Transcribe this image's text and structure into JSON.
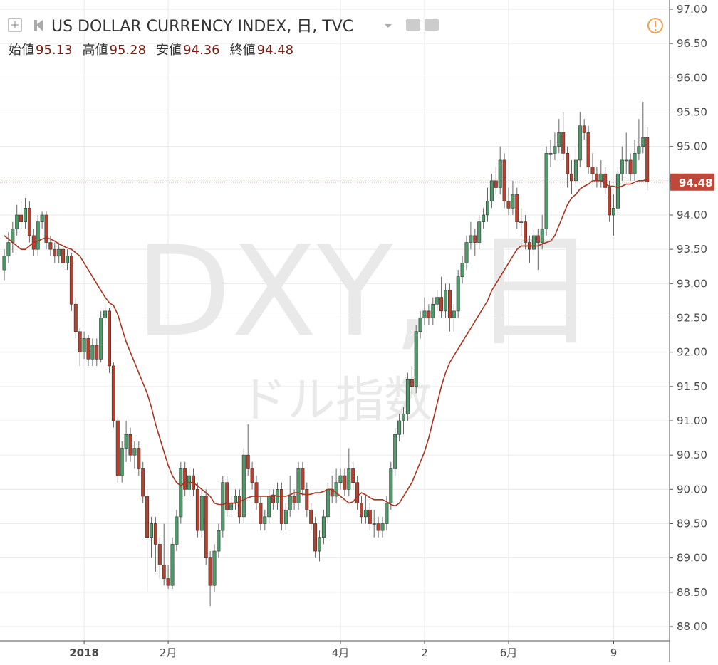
{
  "chart_data": {
    "type": "candlestick",
    "symbol": "US DOLLAR CURRENCY INDEX, 日, TVC",
    "ohlc_labels": [
      "始値",
      "高値",
      "安値",
      "終値"
    ],
    "watermark": "DXY, 日",
    "watermark_sub": "ドル指数",
    "up_color": "#4f9a69",
    "down_color": "#b5412e",
    "ma_color": "#a8341f",
    "ylim": [
      87.8,
      97.13
    ],
    "yticks": [
      {
        "value": 88,
        "label": "88.00"
      },
      {
        "value": 88.5,
        "label": "88.50"
      },
      {
        "value": 89,
        "label": "89.00"
      },
      {
        "value": 89.5,
        "label": "89.50"
      },
      {
        "value": 90,
        "label": "90.00"
      },
      {
        "value": 90.5,
        "label": "90.50"
      },
      {
        "value": 91,
        "label": "91.00"
      },
      {
        "value": 91.5,
        "label": "91.50"
      },
      {
        "value": 92,
        "label": "92.00"
      },
      {
        "value": 92.5,
        "label": "92.50"
      },
      {
        "value": 93,
        "label": "93.00"
      },
      {
        "value": 93.5,
        "label": "93.50"
      },
      {
        "value": 94,
        "label": "94.00"
      },
      {
        "value": 94.5,
        "label": "94.50"
      },
      {
        "value": 95,
        "label": "95.00"
      },
      {
        "value": 95.5,
        "label": "95.50"
      },
      {
        "value": 96,
        "label": "96.00"
      },
      {
        "value": 96.5,
        "label": "96.50"
      },
      {
        "value": 97,
        "label": "97.00"
      }
    ],
    "xticks": [
      {
        "value": 19,
        "label": "2018"
      },
      {
        "value": 39,
        "label": "2月"
      },
      {
        "value": 80,
        "label": "4月"
      },
      {
        "value": 100,
        "label": "2"
      },
      {
        "value": 120,
        "label": "6月"
      },
      {
        "value": 145,
        "label": "9"
      }
    ],
    "grid": true,
    "ohlc": [
      [
        93.2,
        93.5,
        93.05,
        93.4
      ],
      [
        93.4,
        93.75,
        93.3,
        93.6
      ],
      [
        93.6,
        93.9,
        93.45,
        93.8
      ],
      [
        93.8,
        94.15,
        93.7,
        94.0
      ],
      [
        94.0,
        94.2,
        93.8,
        93.9
      ],
      [
        93.9,
        94.25,
        93.8,
        94.1
      ],
      [
        94.1,
        94.2,
        93.6,
        93.7
      ],
      [
        93.7,
        93.8,
        93.4,
        93.5
      ],
      [
        93.5,
        94.0,
        93.4,
        93.9
      ],
      [
        93.9,
        94.05,
        93.8,
        94.0
      ],
      [
        94.0,
        94.05,
        93.5,
        93.6
      ],
      [
        93.6,
        93.7,
        93.4,
        93.5
      ],
      [
        93.5,
        93.6,
        93.3,
        93.4
      ],
      [
        93.4,
        93.6,
        93.3,
        93.5
      ],
      [
        93.5,
        93.55,
        93.2,
        93.3
      ],
      [
        93.3,
        93.5,
        93.2,
        93.4
      ],
      [
        93.4,
        93.45,
        92.6,
        92.7
      ],
      [
        92.7,
        92.8,
        92.2,
        92.3
      ],
      [
        92.3,
        92.35,
        91.8,
        92.0
      ],
      [
        92.0,
        92.3,
        91.9,
        92.2
      ],
      [
        92.2,
        92.25,
        91.8,
        91.9
      ],
      [
        91.9,
        92.2,
        91.8,
        92.1
      ],
      [
        92.1,
        92.2,
        91.8,
        91.9
      ],
      [
        91.9,
        92.6,
        91.85,
        92.5
      ],
      [
        92.5,
        92.7,
        92.4,
        92.6
      ],
      [
        92.6,
        92.65,
        91.7,
        91.8
      ],
      [
        91.8,
        91.85,
        90.9,
        91.0
      ],
      [
        91.0,
        91.05,
        90.1,
        90.2
      ],
      [
        90.2,
        90.7,
        90.1,
        90.6
      ],
      [
        90.6,
        91.0,
        90.4,
        90.8
      ],
      [
        90.8,
        90.9,
        90.4,
        90.5
      ],
      [
        90.5,
        90.7,
        90.3,
        90.6
      ],
      [
        90.6,
        90.7,
        90.2,
        90.3
      ],
      [
        90.3,
        90.4,
        89.8,
        89.9
      ],
      [
        89.9,
        90.0,
        88.5,
        89.3
      ],
      [
        89.3,
        89.6,
        89.0,
        89.5
      ],
      [
        89.5,
        89.6,
        88.8,
        89.2
      ],
      [
        89.2,
        89.3,
        88.7,
        88.9
      ],
      [
        88.9,
        89.5,
        88.6,
        88.7
      ],
      [
        88.7,
        88.9,
        88.55,
        88.6
      ],
      [
        88.6,
        89.3,
        88.55,
        89.2
      ],
      [
        89.2,
        89.7,
        89.1,
        89.6
      ],
      [
        89.6,
        90.4,
        89.5,
        90.3
      ],
      [
        90.3,
        90.4,
        89.9,
        90.0
      ],
      [
        90.0,
        90.3,
        89.9,
        90.2
      ],
      [
        90.2,
        90.3,
        89.9,
        90.0
      ],
      [
        90.0,
        90.1,
        89.3,
        89.4
      ],
      [
        89.4,
        90.0,
        89.3,
        89.9
      ],
      [
        89.9,
        90.0,
        88.9,
        89.0
      ],
      [
        89.0,
        89.1,
        88.3,
        88.6
      ],
      [
        88.6,
        89.2,
        88.5,
        89.1
      ],
      [
        89.1,
        89.5,
        89.0,
        89.4
      ],
      [
        89.4,
        90.2,
        89.3,
        90.1
      ],
      [
        90.1,
        90.2,
        89.6,
        89.7
      ],
      [
        89.7,
        89.9,
        89.6,
        89.8
      ],
      [
        89.8,
        90.0,
        89.7,
        89.9
      ],
      [
        89.9,
        90.0,
        89.5,
        89.6
      ],
      [
        89.6,
        90.6,
        89.5,
        90.5
      ],
      [
        90.5,
        90.95,
        90.2,
        90.3
      ],
      [
        90.3,
        90.4,
        90.0,
        90.1
      ],
      [
        90.1,
        90.2,
        89.7,
        89.8
      ],
      [
        89.8,
        89.9,
        89.4,
        89.5
      ],
      [
        89.5,
        89.7,
        89.4,
        89.6
      ],
      [
        89.6,
        90.0,
        89.5,
        89.9
      ],
      [
        89.9,
        90.0,
        89.7,
        89.8
      ],
      [
        89.8,
        90.1,
        89.7,
        90.0
      ],
      [
        90.0,
        90.1,
        89.4,
        89.5
      ],
      [
        89.5,
        89.8,
        89.4,
        89.7
      ],
      [
        89.7,
        90.2,
        89.6,
        89.9
      ],
      [
        89.9,
        90.0,
        89.7,
        89.8
      ],
      [
        89.8,
        90.4,
        89.7,
        90.3
      ],
      [
        90.3,
        90.4,
        89.9,
        90.0
      ],
      [
        90.0,
        90.1,
        89.6,
        89.7
      ],
      [
        89.7,
        89.8,
        89.4,
        89.5
      ],
      [
        89.5,
        89.6,
        89.0,
        89.1
      ],
      [
        89.1,
        89.4,
        88.95,
        89.3
      ],
      [
        89.3,
        89.7,
        89.2,
        89.6
      ],
      [
        89.6,
        90.1,
        89.5,
        90.0
      ],
      [
        90.0,
        90.2,
        89.8,
        89.9
      ],
      [
        89.9,
        90.3,
        89.8,
        90.1
      ],
      [
        90.1,
        90.3,
        90.0,
        90.2
      ],
      [
        90.2,
        90.3,
        89.9,
        90.0
      ],
      [
        90.0,
        90.6,
        89.9,
        90.3
      ],
      [
        90.3,
        90.4,
        90.0,
        90.1
      ],
      [
        90.1,
        90.2,
        89.7,
        89.8
      ],
      [
        89.8,
        89.9,
        89.5,
        89.6
      ],
      [
        89.6,
        89.9,
        89.5,
        89.7
      ],
      [
        89.7,
        89.8,
        89.4,
        89.5
      ],
      [
        89.5,
        89.7,
        89.3,
        89.5
      ],
      [
        89.5,
        89.6,
        89.3,
        89.4
      ],
      [
        89.4,
        89.6,
        89.3,
        89.5
      ],
      [
        89.5,
        89.9,
        89.4,
        89.8
      ],
      [
        89.8,
        90.4,
        89.7,
        90.3
      ],
      [
        90.3,
        90.9,
        90.2,
        90.8
      ],
      [
        90.8,
        91.1,
        90.7,
        91.0
      ],
      [
        91.0,
        91.2,
        90.8,
        91.1
      ],
      [
        91.1,
        91.7,
        91.0,
        91.6
      ],
      [
        91.6,
        91.8,
        91.4,
        91.5
      ],
      [
        91.5,
        92.4,
        91.4,
        92.3
      ],
      [
        92.3,
        92.6,
        92.2,
        92.5
      ],
      [
        92.5,
        92.8,
        92.4,
        92.6
      ],
      [
        92.6,
        92.7,
        92.4,
        92.5
      ],
      [
        92.5,
        92.8,
        92.4,
        92.7
      ],
      [
        92.7,
        92.9,
        92.6,
        92.8
      ],
      [
        92.8,
        93.1,
        92.5,
        92.6
      ],
      [
        92.6,
        93.0,
        92.5,
        92.9
      ],
      [
        92.9,
        93.0,
        92.3,
        92.5
      ],
      [
        92.5,
        92.7,
        92.3,
        92.6
      ],
      [
        92.6,
        93.2,
        92.5,
        93.1
      ],
      [
        93.1,
        93.4,
        93.0,
        93.3
      ],
      [
        93.3,
        93.7,
        93.2,
        93.6
      ],
      [
        93.6,
        93.9,
        93.5,
        93.7
      ],
      [
        93.7,
        93.8,
        93.4,
        93.6
      ],
      [
        93.6,
        94.0,
        93.5,
        93.9
      ],
      [
        93.9,
        94.1,
        93.8,
        94.0
      ],
      [
        94.0,
        94.4,
        93.9,
        94.2
      ],
      [
        94.2,
        94.6,
        94.1,
        94.5
      ],
      [
        94.5,
        94.7,
        94.3,
        94.4
      ],
      [
        94.4,
        95.0,
        94.3,
        94.8
      ],
      [
        94.8,
        94.9,
        94.1,
        94.2
      ],
      [
        94.2,
        94.4,
        94.0,
        94.1
      ],
      [
        94.1,
        94.5,
        94.0,
        94.3
      ],
      [
        94.3,
        94.4,
        93.8,
        93.9
      ],
      [
        93.9,
        94.1,
        93.7,
        93.9
      ],
      [
        93.9,
        94.0,
        93.5,
        93.6
      ],
      [
        93.6,
        93.7,
        93.3,
        93.5
      ],
      [
        93.5,
        93.8,
        93.4,
        93.7
      ],
      [
        93.7,
        93.8,
        93.2,
        93.6
      ],
      [
        93.6,
        94.0,
        93.5,
        93.8
      ],
      [
        93.8,
        95.0,
        93.7,
        94.9
      ],
      [
        94.9,
        95.1,
        94.7,
        94.9
      ],
      [
        94.9,
        95.2,
        94.8,
        95.0
      ],
      [
        95.0,
        95.4,
        94.9,
        95.2
      ],
      [
        95.2,
        95.5,
        94.8,
        94.9
      ],
      [
        94.9,
        95.0,
        94.4,
        94.6
      ],
      [
        94.6,
        94.8,
        94.3,
        94.5
      ],
      [
        94.5,
        95.0,
        94.4,
        94.8
      ],
      [
        94.8,
        95.5,
        94.7,
        95.3
      ],
      [
        95.3,
        95.4,
        95.1,
        95.2
      ],
      [
        95.2,
        95.3,
        94.6,
        94.7
      ],
      [
        94.7,
        94.9,
        94.5,
        94.6
      ],
      [
        94.6,
        94.7,
        94.4,
        94.5
      ],
      [
        94.5,
        94.8,
        94.4,
        94.6
      ],
      [
        94.6,
        94.7,
        94.3,
        94.4
      ],
      [
        94.4,
        94.5,
        93.9,
        94.0
      ],
      [
        94.0,
        94.3,
        93.7,
        94.1
      ],
      [
        94.1,
        94.7,
        94.0,
        94.6
      ],
      [
        94.6,
        95.0,
        94.5,
        94.8
      ],
      [
        94.8,
        95.2,
        94.6,
        94.8
      ],
      [
        94.8,
        94.9,
        94.5,
        94.6
      ],
      [
        94.6,
        95.1,
        94.5,
        94.9
      ],
      [
        94.9,
        95.4,
        94.8,
        95.0
      ],
      [
        95.0,
        95.65,
        94.9,
        95.13
      ],
      [
        95.13,
        95.28,
        94.36,
        94.48
      ]
    ],
    "ma": [
      93.7,
      93.65,
      93.6,
      93.55,
      93.5,
      93.5,
      93.55,
      93.6,
      93.62,
      93.65,
      93.67,
      93.65,
      93.62,
      93.58,
      93.55,
      93.52,
      93.5,
      93.45,
      93.4,
      93.3,
      93.2,
      93.1,
      93.0,
      92.9,
      92.8,
      92.72,
      92.68,
      92.55,
      92.35,
      92.15,
      92.0,
      91.85,
      91.7,
      91.55,
      91.4,
      91.2,
      90.95,
      90.75,
      90.55,
      90.35,
      90.2,
      90.1,
      90.05,
      90.1,
      90.1,
      90.1,
      90.05,
      90.0,
      89.95,
      89.9,
      89.8,
      89.78,
      89.78,
      89.8,
      89.8,
      89.8,
      89.82,
      89.85,
      89.88,
      89.9,
      89.9,
      89.9,
      89.9,
      89.9,
      89.92,
      89.9,
      89.9,
      89.9,
      89.92,
      89.95,
      89.95,
      89.93,
      89.92,
      89.93,
      89.95,
      89.95,
      89.97,
      90.0,
      90.0,
      89.95,
      89.9,
      89.85,
      89.8,
      89.82,
      89.9,
      89.95,
      89.92,
      89.88,
      89.85,
      89.85,
      89.85,
      89.82,
      89.78,
      89.76,
      89.8,
      89.9,
      90.0,
      90.1,
      90.25,
      90.4,
      90.55,
      90.75,
      91.0,
      91.25,
      91.5,
      91.7,
      91.85,
      91.95,
      92.05,
      92.15,
      92.25,
      92.35,
      92.45,
      92.55,
      92.65,
      92.75,
      92.9,
      93.0,
      93.1,
      93.2,
      93.3,
      93.4,
      93.5,
      93.55,
      93.55,
      93.55,
      93.55,
      93.55,
      93.58,
      93.6,
      93.62,
      93.7,
      93.85,
      94.0,
      94.15,
      94.25,
      94.3,
      94.38,
      94.42,
      94.45,
      94.5,
      94.5,
      94.5,
      94.45,
      94.42,
      94.42,
      94.4,
      94.42,
      94.45,
      94.45,
      94.48,
      94.5,
      94.5,
      94.52
    ]
  }
}
